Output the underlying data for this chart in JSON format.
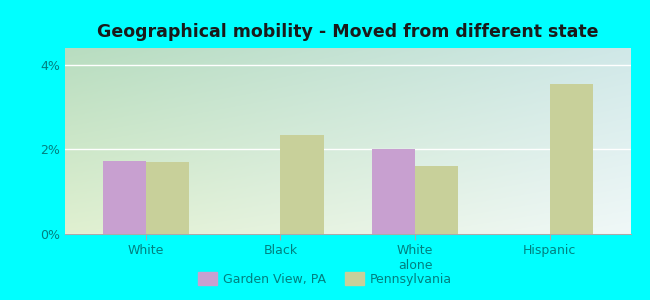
{
  "title": "Geographical mobility - Moved from different state",
  "categories": [
    "White",
    "Black",
    "White\nalone",
    "Hispanic"
  ],
  "garden_view_values": [
    1.72,
    0.0,
    2.0,
    0.0
  ],
  "pennsylvania_values": [
    1.7,
    2.35,
    1.62,
    3.55
  ],
  "garden_view_color": "#c8a0d0",
  "pennsylvania_color": "#c8d09a",
  "ylim": [
    0,
    4.4
  ],
  "yticks": [
    0,
    2,
    4
  ],
  "ytick_labels": [
    "0%",
    "2%",
    "4%"
  ],
  "bg_left_top": "#b8ddc0",
  "bg_right_top": "#d0e8e8",
  "bg_left_bottom": "#e0f0d0",
  "bg_right_bottom": "#f0f8f8",
  "outer_background": "#00ffff",
  "title_color": "#1a1a1a",
  "tick_color": "#008080",
  "bar_width": 0.32,
  "legend_label_1": "Garden View, PA",
  "legend_label_2": "Pennsylvania"
}
